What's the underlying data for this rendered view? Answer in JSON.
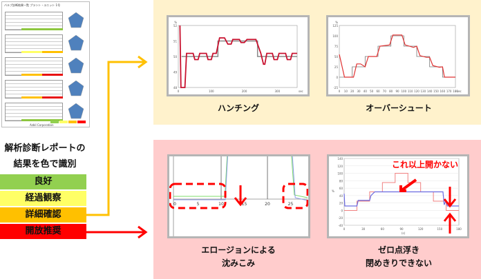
{
  "report": {
    "title": "バルブ診断結果一覧 プラント・ユニット 1号",
    "rows": [
      {
        "status": [
          "#8dc63f",
          "#8dc63f"
        ]
      },
      {
        "status": [
          "#ffff66",
          "#ffc000"
        ]
      },
      {
        "status": [
          "#ffc000",
          "#e81010"
        ]
      },
      {
        "status": [
          "#ffc000",
          "#e81010"
        ]
      },
      {
        "status": [
          "#8dc63f",
          "#8dc63f"
        ]
      }
    ],
    "footer": "Azbil Corporation"
  },
  "legend": {
    "line1": "解析診断レポートの",
    "line2": "結果を色で識別",
    "categories": [
      {
        "label": "良好",
        "color": "#92d050"
      },
      {
        "label": "経過観察",
        "color": "#ffff66"
      },
      {
        "label": "詳細確認",
        "color": "#ffc000"
      },
      {
        "label": "開放推奨",
        "color": "#ff0000"
      }
    ]
  },
  "colors": {
    "top_panel": "#fff2cc",
    "bottom_panel": "#ffcccc",
    "orange_arrow": "#ffc000",
    "red_arrow": "#ff0000"
  },
  "charts": {
    "hunting": {
      "caption": "ハンチング",
      "unit": "%",
      "y_ticks": [
        "52",
        "51",
        "50",
        "49",
        "48"
      ],
      "x_ticks": [
        "0",
        "100",
        "200",
        "300"
      ],
      "x_unit": "sec",
      "setpoint": [
        [
          10,
          50
        ],
        [
          120,
          50
        ],
        [
          120,
          51
        ],
        [
          240,
          51
        ],
        [
          240,
          50
        ],
        [
          360,
          50
        ]
      ],
      "response": [
        [
          5,
          52
        ],
        [
          8,
          48
        ],
        [
          20,
          48
        ],
        [
          25,
          50.2
        ],
        [
          45,
          50.2
        ],
        [
          50,
          49.8
        ],
        [
          60,
          49.8
        ],
        [
          65,
          50.2
        ],
        [
          85,
          50.2
        ],
        [
          90,
          49.8
        ],
        [
          100,
          49.8
        ],
        [
          105,
          50.2
        ],
        [
          115,
          50.2
        ],
        [
          125,
          51.2
        ],
        [
          140,
          51.2
        ],
        [
          150,
          50.8
        ],
        [
          160,
          50.8
        ],
        [
          165,
          51.1
        ],
        [
          185,
          51.1
        ],
        [
          190,
          50.9
        ],
        [
          200,
          50.9
        ],
        [
          208,
          51.1
        ],
        [
          235,
          51.1
        ],
        [
          250,
          50.2
        ],
        [
          258,
          49.5
        ],
        [
          262,
          49.5
        ],
        [
          268,
          50.2
        ],
        [
          285,
          50.2
        ],
        [
          290,
          49.8
        ],
        [
          300,
          49.8
        ],
        [
          305,
          50.2
        ],
        [
          325,
          50.2
        ],
        [
          330,
          49.8
        ],
        [
          340,
          49.8
        ],
        [
          345,
          50.2
        ],
        [
          360,
          50.2
        ]
      ]
    },
    "overshoot": {
      "caption": "オーバーシュート",
      "unit": "%",
      "y_ticks": [
        "125",
        "100",
        "75",
        "50",
        "25",
        "0",
        "-25"
      ],
      "x_ticks": [
        "0",
        "10",
        "20",
        "30",
        "40",
        "50",
        "60",
        "70",
        "80",
        "90",
        "100",
        "110",
        "120",
        "130",
        "140",
        "150",
        "160",
        "170",
        "180"
      ],
      "x_unit": "sec",
      "setpoint": [
        [
          0,
          0
        ],
        [
          20,
          0
        ],
        [
          20,
          25
        ],
        [
          40,
          25
        ],
        [
          40,
          50
        ],
        [
          60,
          50
        ],
        [
          60,
          75
        ],
        [
          80,
          75
        ],
        [
          80,
          100
        ],
        [
          100,
          100
        ],
        [
          100,
          75
        ],
        [
          120,
          75
        ],
        [
          120,
          50
        ],
        [
          140,
          50
        ],
        [
          140,
          25
        ],
        [
          160,
          25
        ],
        [
          160,
          0
        ],
        [
          180,
          0
        ]
      ],
      "response": [
        [
          0,
          55
        ],
        [
          8,
          0
        ],
        [
          22,
          0
        ],
        [
          27,
          32
        ],
        [
          33,
          32
        ],
        [
          40,
          25
        ],
        [
          45,
          50
        ],
        [
          58,
          50
        ],
        [
          63,
          75
        ],
        [
          78,
          78
        ],
        [
          83,
          102
        ],
        [
          97,
          102
        ],
        [
          102,
          78
        ],
        [
          115,
          72
        ],
        [
          120,
          75
        ],
        [
          125,
          52
        ],
        [
          135,
          48
        ],
        [
          140,
          48
        ],
        [
          145,
          28
        ],
        [
          155,
          24
        ],
        [
          160,
          25
        ],
        [
          163,
          0
        ],
        [
          180,
          0
        ]
      ]
    },
    "erosion": {
      "caption_line1": "エロージョンによる",
      "caption_line2": "沈みこみ",
      "x_ticks": [
        "0",
        "5",
        "10",
        "15",
        "20",
        "25"
      ]
    },
    "zero_float": {
      "caption_line1": "ゼロ点浮き",
      "caption_line2": "閉めきりできない",
      "annotation": "これ以上開かない",
      "unit": "%",
      "x_unit": "(s)",
      "y_ticks": [
        "140",
        "120",
        "100",
        "80",
        "60",
        "40",
        "20",
        "0",
        "-20",
        "-40"
      ],
      "x_ticks": [
        "0",
        "30",
        "60",
        "90",
        "120",
        "150",
        "180"
      ],
      "input": [
        [
          0,
          0
        ],
        [
          20,
          0
        ],
        [
          20,
          25
        ],
        [
          40,
          25
        ],
        [
          40,
          50
        ],
        [
          60,
          50
        ],
        [
          60,
          75
        ],
        [
          80,
          75
        ],
        [
          80,
          100
        ],
        [
          100,
          100
        ],
        [
          100,
          75
        ],
        [
          120,
          75
        ],
        [
          120,
          50
        ],
        [
          140,
          50
        ],
        [
          140,
          25
        ],
        [
          160,
          25
        ],
        [
          160,
          0
        ],
        [
          180,
          0
        ]
      ],
      "output": [
        [
          0,
          45
        ],
        [
          1,
          12
        ],
        [
          20,
          12
        ],
        [
          22,
          27
        ],
        [
          40,
          27
        ],
        [
          42,
          40
        ],
        [
          48,
          50
        ],
        [
          155,
          50
        ],
        [
          157,
          15
        ],
        [
          158,
          20
        ],
        [
          160,
          25
        ],
        [
          162,
          12
        ],
        [
          180,
          12
        ]
      ]
    }
  }
}
